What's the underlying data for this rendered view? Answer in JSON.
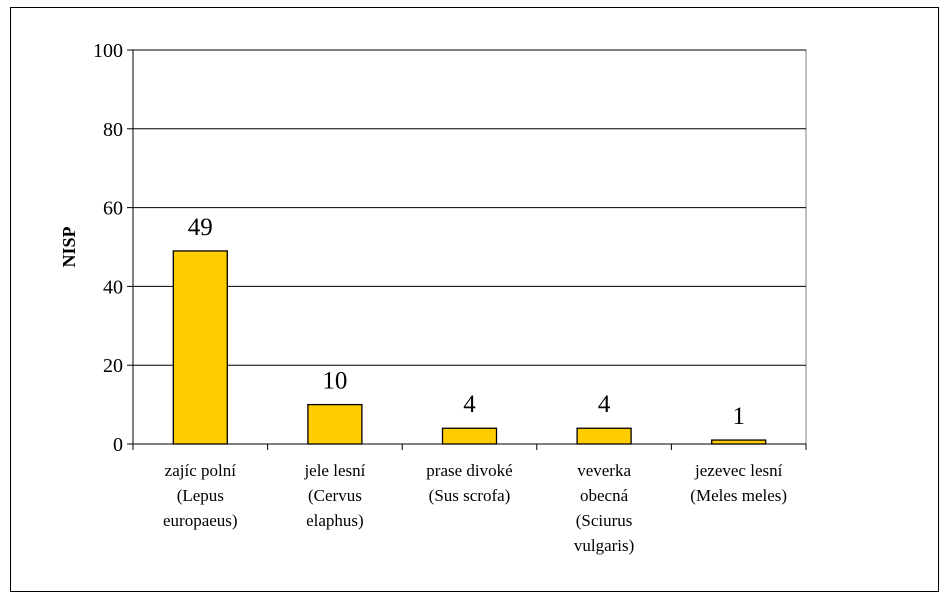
{
  "chart_data": {
    "type": "bar",
    "title": "",
    "xlabel": "",
    "ylabel": "NISP",
    "ylim": [
      0,
      100
    ],
    "yticks": [
      0,
      20,
      40,
      60,
      80,
      100
    ],
    "grid": true,
    "legend": "none",
    "categories": [
      [
        "zajíc polní",
        "(Lepus",
        "europaeus)"
      ],
      [
        "jele lesní",
        "(Cervus",
        "elaphus)"
      ],
      [
        "prase divoké",
        "(Sus scrofa)"
      ],
      [
        "veverka",
        "obecná",
        "(Sciurus",
        "vulgaris)"
      ],
      [
        "jezevec lesní",
        "(Meles meles)"
      ]
    ],
    "values": [
      49,
      10,
      4,
      4,
      1
    ],
    "data_labels": [
      "49",
      "10",
      "4",
      "4",
      "1"
    ],
    "bar_color": "#FFCC00",
    "bar_border": "#000000"
  }
}
